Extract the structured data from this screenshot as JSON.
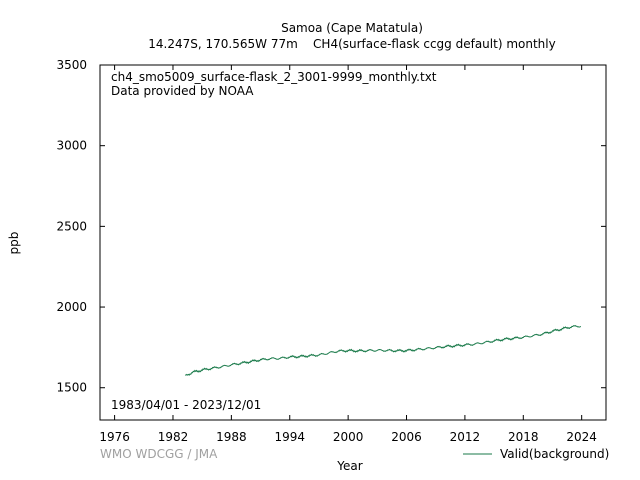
{
  "header": {
    "title": "Samoa (Cape Matatula)",
    "subtitle": "14.247S, 170.565W 77m    CH4(surface-flask ccgg default) monthly"
  },
  "annotations": {
    "filename": "ch4_smo5009_surface-flask_2_3001-9999_monthly.txt",
    "provider": "Data provided by NOAA",
    "date_range": "1983/04/01 - 2023/12/01",
    "credit": "WMO WDCGG / JMA"
  },
  "chart_data": {
    "type": "line",
    "title": "Samoa (Cape Matatula)",
    "xlabel": "Year",
    "ylabel": "ppb",
    "xlim": [
      1974.5,
      2026.5
    ],
    "ylim": [
      1300,
      3500
    ],
    "x_ticks": [
      1976,
      1982,
      1988,
      1994,
      2000,
      2006,
      2012,
      2018,
      2024
    ],
    "y_ticks": [
      1500,
      2000,
      2500,
      3000,
      3500
    ],
    "grid": false,
    "legend_position": "bottom-right",
    "series": [
      {
        "name": "Valid(background)",
        "color": "#1a7a4a",
        "points": [
          [
            1983.25,
            1573
          ],
          [
            1984,
            1595
          ],
          [
            1985,
            1610
          ],
          [
            1986,
            1620
          ],
          [
            1987,
            1630
          ],
          [
            1988,
            1642
          ],
          [
            1989,
            1652
          ],
          [
            1990,
            1662
          ],
          [
            1991,
            1673
          ],
          [
            1992,
            1680
          ],
          [
            1993,
            1682
          ],
          [
            1994,
            1690
          ],
          [
            1995,
            1693
          ],
          [
            1996,
            1698
          ],
          [
            1997,
            1703
          ],
          [
            1998,
            1715
          ],
          [
            1999,
            1727
          ],
          [
            2000,
            1730
          ],
          [
            2001,
            1728
          ],
          [
            2002,
            1730
          ],
          [
            2003,
            1732
          ],
          [
            2004,
            1731
          ],
          [
            2005,
            1729
          ],
          [
            2006,
            1730
          ],
          [
            2007,
            1736
          ],
          [
            2008,
            1742
          ],
          [
            2009,
            1748
          ],
          [
            2010,
            1755
          ],
          [
            2011,
            1760
          ],
          [
            2012,
            1765
          ],
          [
            2013,
            1770
          ],
          [
            2014,
            1780
          ],
          [
            2015,
            1790
          ],
          [
            2016,
            1800
          ],
          [
            2017,
            1806
          ],
          [
            2018,
            1813
          ],
          [
            2019,
            1822
          ],
          [
            2020,
            1833
          ],
          [
            2021,
            1850
          ],
          [
            2022,
            1865
          ],
          [
            2023,
            1878
          ],
          [
            2023.92,
            1882
          ]
        ]
      }
    ]
  }
}
